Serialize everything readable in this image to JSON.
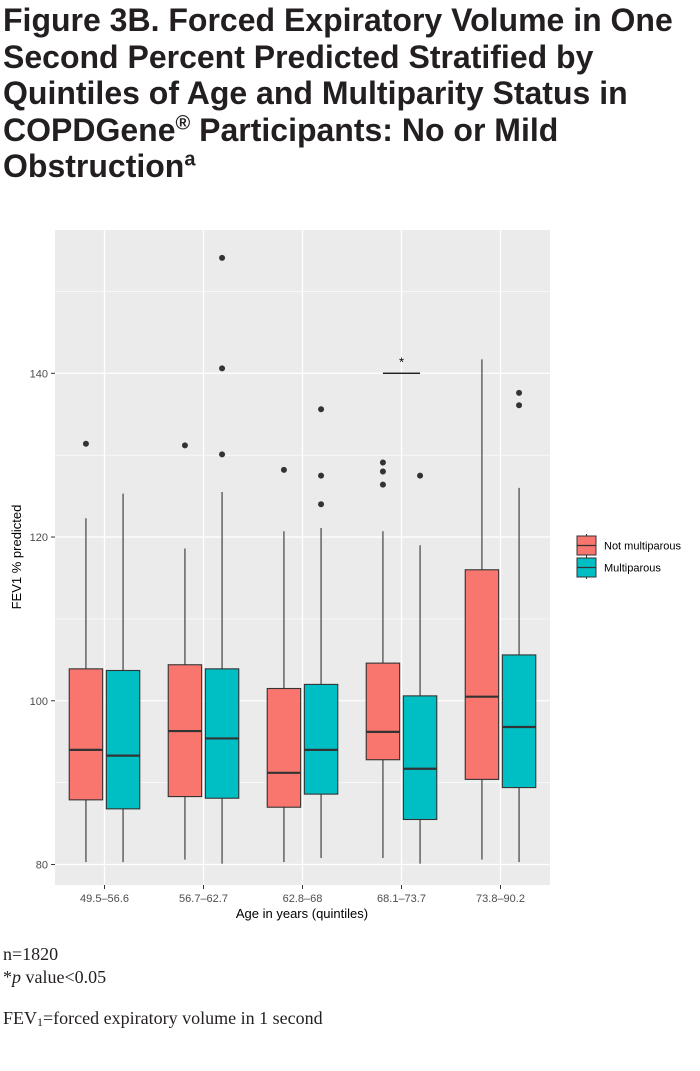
{
  "title": {
    "main": "Figure 3B. Forced Expiratory Volume in One Second Percent Predicted Stratified by Quintiles of Age and Multiparity Status in COPDGene",
    "registered": "®",
    "rest": " Participants: No or Mild Obstruction",
    "footnote_mark": "a"
  },
  "chart_data": {
    "type": "box",
    "xlabel": "Age in years (quintiles)",
    "ylabel": "FEV1 % predicted",
    "categories": [
      "49.5–56.6",
      "56.7–62.7",
      "62.8–68",
      "68.1–73.7",
      "73.8–90.2"
    ],
    "yticks": [
      80,
      100,
      120,
      140
    ],
    "ylim": [
      77.5,
      157.5
    ],
    "grid": true,
    "legend_placement": "right",
    "series": [
      {
        "name": "Not multiparous",
        "color": "#f8766d",
        "boxes": [
          {
            "whisker_low": 80.3,
            "q1": 87.9,
            "median": 94.0,
            "q3": 103.9,
            "whisker_high": 122.3,
            "outliers": [
              131.4
            ]
          },
          {
            "whisker_low": 80.6,
            "q1": 88.3,
            "median": 96.3,
            "q3": 104.4,
            "whisker_high": 118.6,
            "outliers": [
              131.2
            ]
          },
          {
            "whisker_low": 80.3,
            "q1": 87.0,
            "median": 91.2,
            "q3": 101.5,
            "whisker_high": 120.7,
            "outliers": [
              128.2
            ]
          },
          {
            "whisker_low": 80.8,
            "q1": 92.8,
            "median": 96.2,
            "q3": 104.6,
            "whisker_high": 120.7,
            "outliers": [
              126.4,
              128.0,
              129.1
            ]
          },
          {
            "whisker_low": 80.6,
            "q1": 90.4,
            "median": 100.5,
            "q3": 116.0,
            "whisker_high": 141.7,
            "outliers": []
          }
        ]
      },
      {
        "name": "Multiparous",
        "color": "#00bfc4",
        "boxes": [
          {
            "whisker_low": 80.3,
            "q1": 86.8,
            "median": 93.3,
            "q3": 103.7,
            "whisker_high": 125.3,
            "outliers": []
          },
          {
            "whisker_low": 80.1,
            "q1": 88.1,
            "median": 95.4,
            "q3": 103.9,
            "whisker_high": 125.5,
            "outliers": [
              130.1,
              140.6,
              154.1
            ]
          },
          {
            "whisker_low": 80.8,
            "q1": 88.6,
            "median": 94.0,
            "q3": 102.0,
            "whisker_high": 121.1,
            "outliers": [
              124.0,
              127.5,
              135.6
            ]
          },
          {
            "whisker_low": 80.1,
            "q1": 85.5,
            "median": 91.7,
            "q3": 100.6,
            "whisker_high": 119.0,
            "outliers": [
              127.5
            ]
          },
          {
            "whisker_low": 80.3,
            "q1": 89.4,
            "median": 96.8,
            "q3": 105.6,
            "whisker_high": 126.0,
            "outliers": [
              136.1,
              137.6
            ]
          }
        ]
      }
    ],
    "annotations": [
      {
        "category_index": 3,
        "y": 140.0,
        "text": "*"
      }
    ]
  },
  "notes": {
    "n": "n=1820",
    "p_star": "*",
    "p_italic": "p",
    "p_rest": " value<0.05",
    "fev_prefix": "FEV",
    "fev_sub": "1",
    "fev_rest": "=forced expiratory volume in 1 second"
  }
}
